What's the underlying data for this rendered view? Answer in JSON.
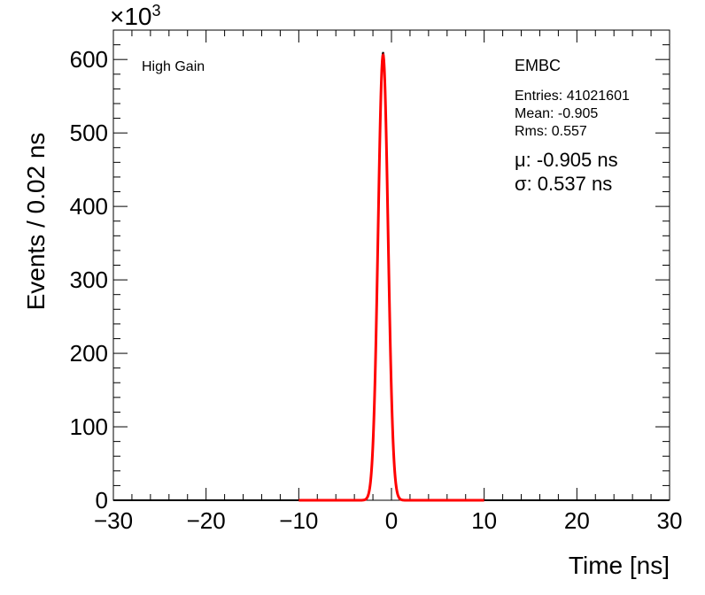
{
  "chart_data": {
    "type": "histogram",
    "xlabel": "Time [ns]",
    "ylabel": "Events / 0.02 ns",
    "y_multiplier": "×10",
    "y_multiplier_exp": "3",
    "xlim": [
      -30,
      30
    ],
    "ylim": [
      0,
      640
    ],
    "x_ticks": [
      -30,
      -20,
      -10,
      0,
      10,
      20,
      30
    ],
    "x_tick_labels": [
      "−30",
      "−20",
      "−10",
      "0",
      "10",
      "20",
      "30"
    ],
    "y_ticks": [
      0,
      100,
      200,
      300,
      400,
      500,
      600
    ],
    "y_tick_labels": [
      "0",
      "100",
      "200",
      "300",
      "400",
      "500",
      "600"
    ],
    "series": [
      {
        "kind": "histogram",
        "color": "#000000",
        "peak_x": -0.905,
        "peak_y": 610,
        "sigma": 0.537
      },
      {
        "kind": "fit",
        "color": "#ff0000",
        "mean": -0.905,
        "sigma": 0.537,
        "amplitude": 606,
        "range": [
          -10,
          10
        ]
      }
    ],
    "annotations": {
      "gain_label": "High Gain",
      "legend_title": "EMBC",
      "entries": "Entries: 41021601",
      "mean": "Mean: -0.905",
      "rms": "Rms: 0.557",
      "mu": "μ: -0.905 ns",
      "sigma": "σ: 0.537 ns"
    }
  }
}
